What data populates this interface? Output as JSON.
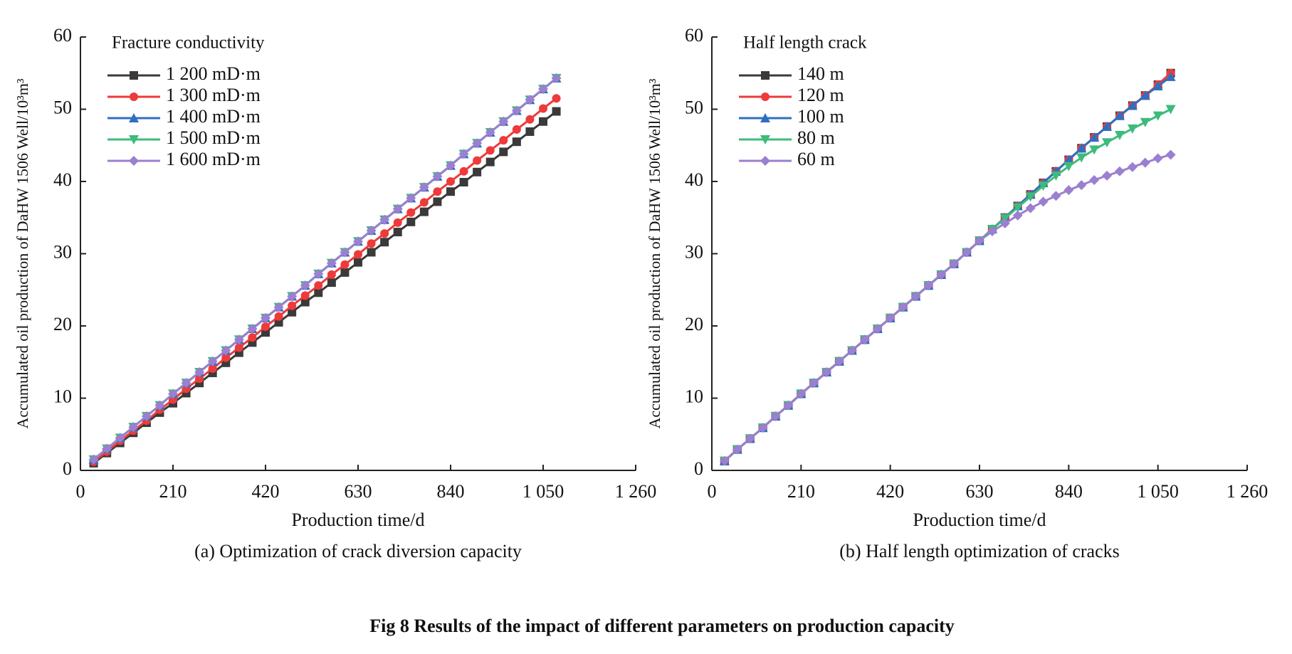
{
  "figure_caption": "Fig 8 Results of the impact of different parameters on production capacity",
  "chart_data": [
    {
      "type": "line",
      "caption": "(a) Optimization of crack diversion capacity",
      "legend_title": "Fracture conductivity",
      "x_label": "Production time/d",
      "y_label": "Accumulated oil production of DaHW 1506 Well/10³m³",
      "xlim": [
        0,
        1260
      ],
      "xticks": [
        0,
        210,
        420,
        630,
        840,
        {
          "value": 1050,
          "label": "1 050"
        },
        {
          "value": 1260,
          "label": "1 260"
        }
      ],
      "ylim": [
        0,
        60
      ],
      "yticks": [
        0,
        10,
        20,
        30,
        40,
        50,
        60
      ],
      "legend": "upper left",
      "x": [
        30,
        60,
        90,
        120,
        150,
        180,
        210,
        240,
        270,
        300,
        330,
        360,
        390,
        420,
        450,
        480,
        510,
        540,
        570,
        600,
        630,
        660,
        690,
        720,
        750,
        780,
        810,
        840,
        870,
        900,
        930,
        960,
        990,
        1020,
        1050,
        1080
      ],
      "series": [
        {
          "name": "1 200 mD·m",
          "color": "#3a3a3a",
          "marker": "square",
          "values": [
            1.0,
            2.4,
            3.8,
            5.2,
            6.6,
            8.0,
            9.3,
            10.7,
            12.1,
            13.5,
            14.9,
            16.3,
            17.7,
            19.1,
            20.5,
            21.9,
            23.3,
            24.6,
            26.0,
            27.4,
            28.8,
            30.2,
            31.6,
            33.0,
            34.4,
            35.8,
            37.2,
            38.6,
            39.9,
            41.3,
            42.7,
            44.1,
            45.5,
            46.9,
            48.3,
            49.7
          ]
        },
        {
          "name": "1 300 mD·m",
          "color": "#ee3a3a",
          "marker": "circle",
          "values": [
            1.2,
            2.6,
            4.1,
            5.5,
            6.9,
            8.4,
            9.8,
            11.3,
            12.7,
            14.1,
            15.6,
            17.0,
            18.4,
            19.9,
            21.3,
            22.8,
            24.2,
            25.6,
            27.1,
            28.5,
            29.9,
            31.4,
            32.8,
            34.3,
            35.7,
            37.1,
            38.6,
            40.0,
            41.4,
            42.9,
            44.3,
            45.7,
            47.2,
            48.6,
            50.1,
            51.5
          ]
        },
        {
          "name": "1 400 mD·m",
          "color": "#2f6fc0",
          "marker": "triangle-up",
          "values": [
            1.5,
            3.0,
            4.5,
            6.0,
            7.5,
            9.0,
            10.6,
            12.1,
            13.6,
            15.1,
            16.6,
            18.1,
            19.6,
            21.1,
            22.6,
            24.1,
            25.6,
            27.2,
            28.7,
            30.2,
            31.7,
            33.2,
            34.7,
            36.2,
            37.7,
            39.2,
            40.7,
            42.2,
            43.8,
            45.3,
            46.8,
            48.3,
            49.8,
            51.3,
            52.8,
            54.3
          ]
        },
        {
          "name": "1 500 mD·m",
          "color": "#3dbb7a",
          "marker": "triangle-down",
          "values": [
            1.5,
            3.0,
            4.5,
            6.0,
            7.5,
            9.0,
            10.6,
            12.1,
            13.6,
            15.1,
            16.6,
            18.1,
            19.6,
            21.1,
            22.6,
            24.1,
            25.6,
            27.2,
            28.7,
            30.2,
            31.7,
            33.2,
            34.7,
            36.2,
            37.7,
            39.2,
            40.7,
            42.2,
            43.8,
            45.3,
            46.8,
            48.3,
            49.8,
            51.3,
            52.8,
            54.3
          ]
        },
        {
          "name": "1 600 mD·m",
          "color": "#9b7fd0",
          "marker": "diamond",
          "values": [
            1.5,
            3.0,
            4.5,
            6.0,
            7.5,
            9.0,
            10.6,
            12.1,
            13.6,
            15.1,
            16.6,
            18.1,
            19.6,
            21.1,
            22.6,
            24.1,
            25.6,
            27.2,
            28.7,
            30.2,
            31.7,
            33.2,
            34.7,
            36.2,
            37.7,
            39.2,
            40.7,
            42.2,
            43.8,
            45.3,
            46.8,
            48.3,
            49.8,
            51.3,
            52.8,
            54.3
          ]
        }
      ]
    },
    {
      "type": "line",
      "caption": "(b) Half length optimization of cracks",
      "legend_title": "Half length crack",
      "x_label": "Production time/d",
      "y_label": "Accumulated oil production of DaHW 1506 Well/10³m³",
      "xlim": [
        0,
        1260
      ],
      "xticks": [
        0,
        210,
        420,
        630,
        840,
        {
          "value": 1050,
          "label": "1 050"
        },
        {
          "value": 1260,
          "label": "1 260"
        }
      ],
      "ylim": [
        0,
        60
      ],
      "yticks": [
        0,
        10,
        20,
        30,
        40,
        50,
        60
      ],
      "legend": "upper left",
      "x": [
        30,
        60,
        90,
        120,
        150,
        180,
        210,
        240,
        270,
        300,
        330,
        360,
        390,
        420,
        450,
        480,
        510,
        540,
        570,
        600,
        630,
        660,
        690,
        720,
        750,
        780,
        810,
        840,
        870,
        900,
        930,
        960,
        990,
        1020,
        1050,
        1080
      ],
      "series": [
        {
          "name": "140 m",
          "color": "#3a3a3a",
          "marker": "square",
          "values": [
            1.3,
            2.9,
            4.4,
            5.9,
            7.5,
            9.0,
            10.6,
            12.1,
            13.6,
            15.1,
            16.6,
            18.1,
            19.6,
            21.1,
            22.6,
            24.1,
            25.6,
            27.1,
            28.6,
            30.2,
            31.8,
            33.4,
            35.0,
            36.6,
            38.2,
            39.8,
            41.4,
            43.0,
            44.6,
            46.1,
            47.6,
            49.1,
            50.5,
            51.9,
            53.4,
            55.0
          ]
        },
        {
          "name": "120 m",
          "color": "#ee3a3a",
          "marker": "circle",
          "values": [
            1.3,
            2.9,
            4.4,
            5.9,
            7.5,
            9.0,
            10.6,
            12.1,
            13.6,
            15.1,
            16.6,
            18.1,
            19.6,
            21.1,
            22.6,
            24.1,
            25.6,
            27.1,
            28.6,
            30.2,
            31.8,
            33.4,
            35.0,
            36.6,
            38.2,
            39.8,
            41.4,
            43.0,
            44.6,
            46.1,
            47.6,
            49.1,
            50.5,
            51.9,
            53.4,
            55.0
          ]
        },
        {
          "name": "100 m",
          "color": "#2f6fc0",
          "marker": "triangle-up",
          "values": [
            1.3,
            2.9,
            4.4,
            5.9,
            7.5,
            9.0,
            10.6,
            12.1,
            13.6,
            15.1,
            16.6,
            18.1,
            19.6,
            21.1,
            22.6,
            24.1,
            25.6,
            27.1,
            28.6,
            30.2,
            31.8,
            33.4,
            35.0,
            36.6,
            38.2,
            39.8,
            41.4,
            43.0,
            44.6,
            46.1,
            47.6,
            49.1,
            50.5,
            51.9,
            53.2,
            54.5
          ]
        },
        {
          "name": "80 m",
          "color": "#3dbb7a",
          "marker": "triangle-down",
          "values": [
            1.3,
            2.9,
            4.4,
            5.9,
            7.5,
            9.0,
            10.6,
            12.1,
            13.6,
            15.1,
            16.6,
            18.1,
            19.6,
            21.1,
            22.6,
            24.1,
            25.6,
            27.1,
            28.6,
            30.2,
            31.8,
            33.4,
            34.9,
            36.4,
            37.9,
            39.4,
            40.8,
            42.1,
            43.3,
            44.4,
            45.4,
            46.4,
            47.3,
            48.2,
            49.1,
            50.0
          ]
        },
        {
          "name": "60 m",
          "color": "#9b7fd0",
          "marker": "diamond",
          "values": [
            1.3,
            2.9,
            4.4,
            5.9,
            7.5,
            9.0,
            10.6,
            12.1,
            13.6,
            15.1,
            16.6,
            18.1,
            19.6,
            21.1,
            22.6,
            24.1,
            25.6,
            27.1,
            28.6,
            30.2,
            31.8,
            33.1,
            34.2,
            35.3,
            36.3,
            37.2,
            38.0,
            38.8,
            39.5,
            40.2,
            40.8,
            41.4,
            42.0,
            42.6,
            43.2,
            43.7
          ]
        }
      ]
    }
  ]
}
